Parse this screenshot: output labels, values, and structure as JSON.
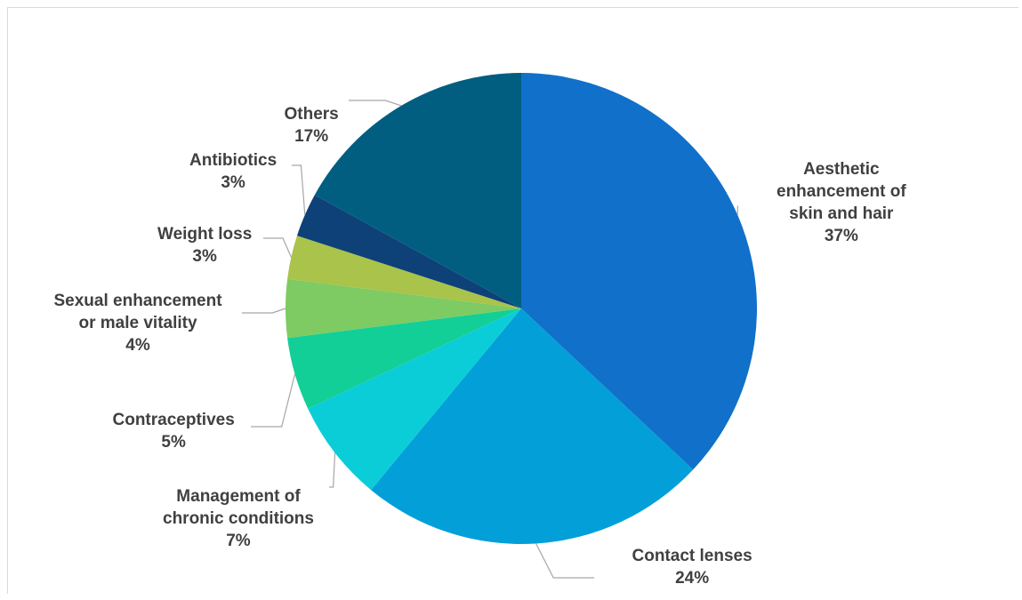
{
  "chart_data": {
    "type": "pie",
    "title": "",
    "start_angle_deg": 0,
    "direction": "clockwise",
    "slices": [
      {
        "lines": [
          "Aesthetic",
          "enhancement of",
          "skin and hair"
        ],
        "value": 37,
        "pct_label": "37%",
        "color": "#1170c9"
      },
      {
        "lines": [
          "Contact lenses"
        ],
        "value": 24,
        "pct_label": "24%",
        "color": "#039fd9"
      },
      {
        "lines": [
          "Management of",
          "chronic conditions"
        ],
        "value": 7,
        "pct_label": "7%",
        "color": "#0bcdd8"
      },
      {
        "lines": [
          "Contraceptives"
        ],
        "value": 5,
        "pct_label": "5%",
        "color": "#12cf98"
      },
      {
        "lines": [
          "Sexual enhancement",
          "or male vitality"
        ],
        "value": 4,
        "pct_label": "4%",
        "color": "#7dcb62"
      },
      {
        "lines": [
          "Weight loss"
        ],
        "value": 3,
        "pct_label": "3%",
        "color": "#a9c34b"
      },
      {
        "lines": [
          "Antibiotics"
        ],
        "value": 3,
        "pct_label": "3%",
        "color": "#0d4178"
      },
      {
        "lines": [
          "Others"
        ],
        "value": 17,
        "pct_label": "17%",
        "color": "#025e80"
      }
    ]
  }
}
